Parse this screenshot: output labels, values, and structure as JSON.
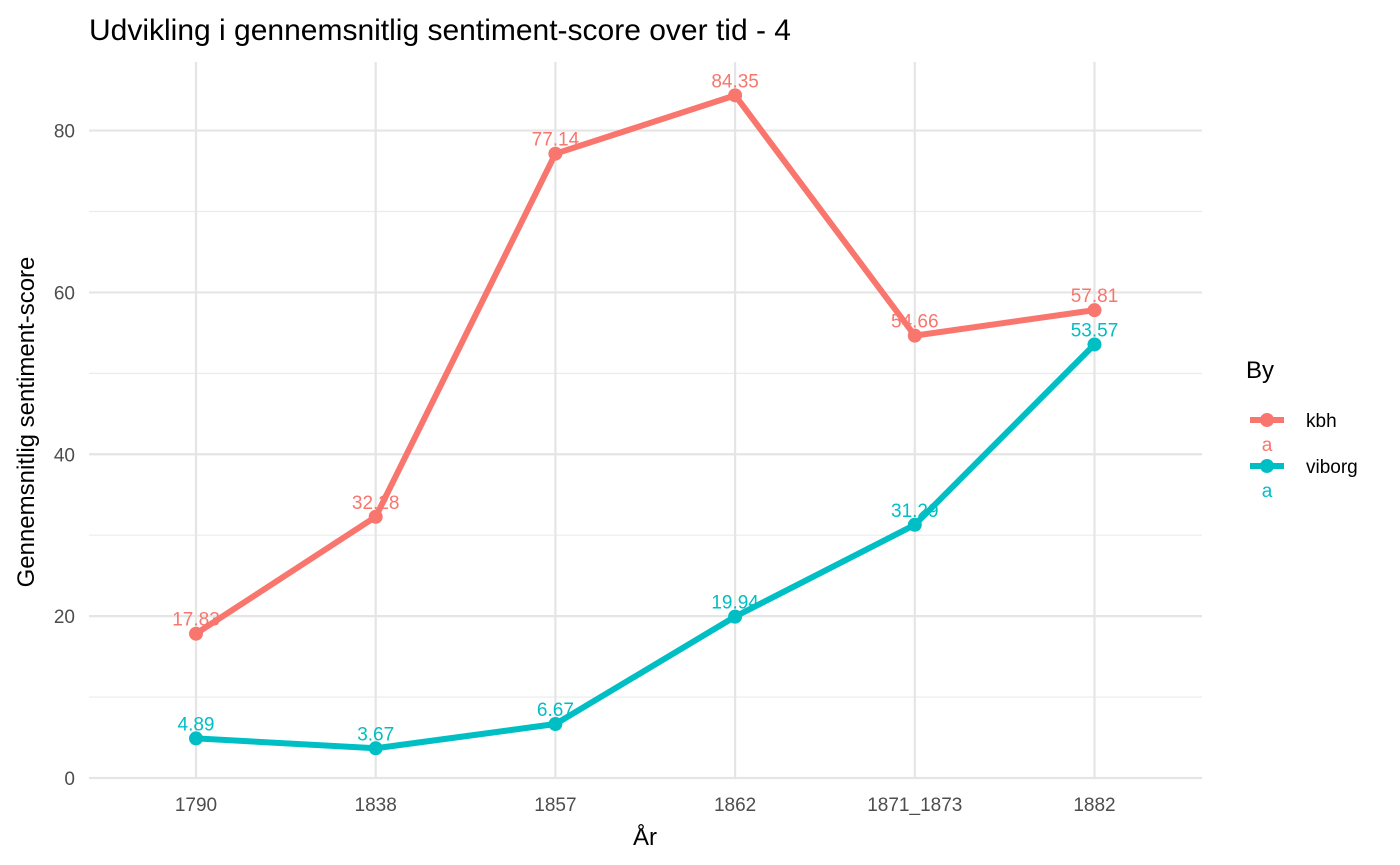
{
  "chart_data": {
    "type": "line",
    "title": "Udvikling i gennemsnitlig sentiment-score over tid - 4",
    "xlabel": "År",
    "ylabel": "Gennemsnitlig sentiment-score",
    "categories": [
      "1790",
      "1838",
      "1857",
      "1862",
      "1871_1873",
      "1882"
    ],
    "ylim": [
      0,
      88
    ],
    "yticks": [
      0,
      20,
      40,
      60,
      80
    ],
    "grid": true,
    "legend": {
      "title": "By",
      "position": "right",
      "key_text": "a"
    },
    "series": [
      {
        "name": "kbh",
        "color": "#F8766D",
        "values": [
          17.83,
          32.28,
          77.14,
          84.35,
          54.66,
          57.81
        ],
        "labels": [
          "17.83",
          "32.28",
          "77.14",
          "84.35",
          "54.66",
          "57.81"
        ]
      },
      {
        "name": "viborg",
        "color": "#00BFC4",
        "values": [
          4.89,
          3.67,
          6.67,
          19.94,
          31.29,
          53.57
        ],
        "labels": [
          "4.89",
          "3.67",
          "6.67",
          "19.94",
          "31.29",
          "53.57"
        ]
      }
    ]
  }
}
